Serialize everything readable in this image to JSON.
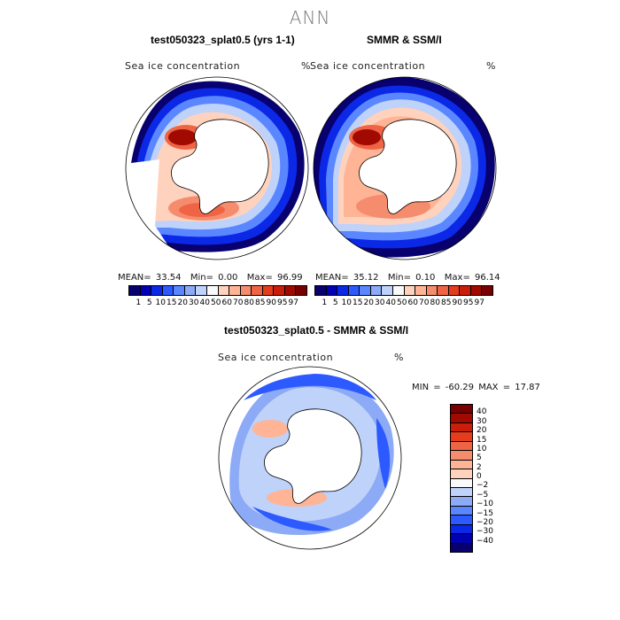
{
  "title": "ANN",
  "panels": {
    "model": {
      "title": "test050323_splat0.5 (yrs 1-1)",
      "field_label": "Sea ice concentration",
      "unit": "%",
      "mean_label": "MEAN=",
      "mean": "33.54",
      "min_label": "Min=",
      "min": "0.00",
      "max_label": "Max=",
      "max": "96.99"
    },
    "obs": {
      "title": "SMMR & SSM/I",
      "field_label": "Sea ice concentration",
      "unit": "%",
      "mean_label": "MEAN=",
      "mean": "35.12",
      "min_label": "Min=",
      "min": "0.10",
      "max_label": "Max=",
      "max": "96.14"
    },
    "diff": {
      "title": "test050323_splat0.5 - SMMR & SSM/I",
      "field_label": "Sea ice concentration",
      "unit": "%",
      "minmax": "MIN = -60.29  MAX =  17.87"
    }
  },
  "colorbar_top": {
    "colors": [
      "#08006e",
      "#0000b4",
      "#0a28e6",
      "#2d5aff",
      "#5a87ff",
      "#8caaf5",
      "#bed2fa",
      "#fafafa",
      "#ffd2be",
      "#ffb496",
      "#f58c6e",
      "#f06446",
      "#e63c1e",
      "#c81e0a",
      "#a00a00",
      "#780000"
    ],
    "labels": [
      "1",
      "5",
      "10",
      "15",
      "20",
      "30",
      "40",
      "50",
      "60",
      "70",
      "80",
      "85",
      "90",
      "95",
      "97"
    ]
  },
  "colorbar_diff": {
    "colors": [
      "#780000",
      "#a00a00",
      "#c81e0a",
      "#e63c1e",
      "#f06446",
      "#f58c6e",
      "#ffb496",
      "#ffd2be",
      "#fafafa",
      "#bed2fa",
      "#8caaf5",
      "#5a87ff",
      "#2d5aff",
      "#0a28e6",
      "#0000b4",
      "#08006e"
    ],
    "labels": [
      "40",
      "30",
      "20",
      "15",
      "10",
      "5",
      "2",
      "0",
      "−2",
      "−5",
      "−10",
      "−15",
      "−20",
      "−30",
      "−40"
    ]
  }
}
